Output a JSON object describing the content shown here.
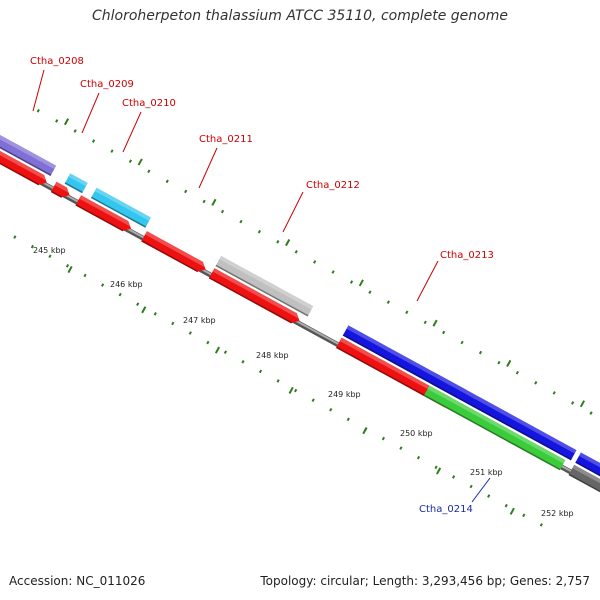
{
  "title": "Chloroherpeton thalassium ATCC 35110, complete genome",
  "footer": {
    "accession": "Accession: NC_011026",
    "topology": "Topology: circular; Length: 3,293,456 bp; Genes: 2,757"
  },
  "colors": {
    "reverse_cds": "#ee1111",
    "label_red": "#cc0000",
    "label_blue": "#1a2aa8",
    "backbone": "#888888",
    "tick": "#2e7d1c",
    "feature_purple": "#7f6fd6",
    "feature_cyan": "#33c6ee",
    "feature_grey": "#c0c0c0",
    "feature_blue": "#1515e0",
    "feature_green": "#3bcc3b",
    "feature_darkgrey": "#666666"
  },
  "kbp_ticks": [
    "245 kbp",
    "246 kbp",
    "247 kbp",
    "248 kbp",
    "249 kbp",
    "250 kbp",
    "251 kbp",
    "252 kbp"
  ],
  "gene_labels": [
    {
      "name": "Ctha_0208",
      "color": "label_red"
    },
    {
      "name": "Ctha_0209",
      "color": "label_red"
    },
    {
      "name": "Ctha_0210",
      "color": "label_red"
    },
    {
      "name": "Ctha_0211",
      "color": "label_red"
    },
    {
      "name": "Ctha_0212",
      "color": "label_red"
    },
    {
      "name": "Ctha_0213",
      "color": "label_red"
    },
    {
      "name": "Ctha_0214",
      "color": "label_blue"
    }
  ]
}
